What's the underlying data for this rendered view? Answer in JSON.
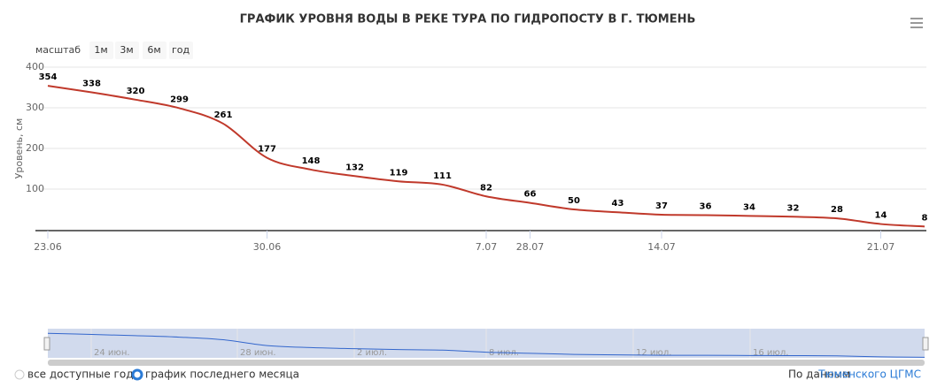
{
  "chart_data": {
    "type": "line",
    "title": "ГРАФИК УРОВНЯ ВОДЫ В РЕКЕ ТУРА ПО ГИДРОПОСТУ В Г. ТЮМЕНЬ",
    "y_label": "Уровень, см",
    "categories": [
      "23.06",
      null,
      null,
      null,
      null,
      "30.06",
      null,
      null,
      null,
      null,
      "7.07",
      "28.07",
      null,
      null,
      "14.07",
      null,
      null,
      null,
      null,
      "21.07",
      null
    ],
    "series": [
      {
        "name": "Уровень",
        "color": "#c0392b",
        "values": [
          354,
          338,
          320,
          299,
          261,
          177,
          148,
          132,
          119,
          111,
          82,
          66,
          50,
          43,
          37,
          36,
          34,
          32,
          28,
          14,
          8
        ]
      }
    ],
    "ylim": [
      0,
      400
    ],
    "yticks": [
      100,
      200,
      300,
      400
    ],
    "grid": true,
    "range_selector": {
      "label": "масштаб",
      "buttons": [
        "1м",
        "3м",
        "6м",
        "год"
      ]
    },
    "navigator_labels": [
      "24 июн.",
      "28 июн.",
      "2 июл.",
      "8 июл.",
      "12 июл.",
      "16 июл."
    ],
    "options": [
      "все доступные года",
      "график последнего месяца"
    ],
    "source": {
      "prefix": "По данным",
      "link": "Тюменского ЦГМС"
    }
  }
}
